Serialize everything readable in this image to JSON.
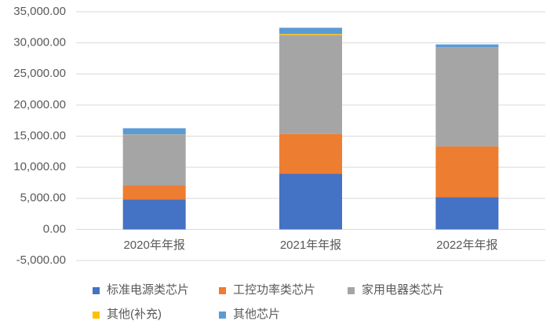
{
  "chart_data": {
    "type": "stacked_bar",
    "categories": [
      "2020年年报",
      "2021年年报",
      "2022年年报"
    ],
    "series": [
      {
        "name": "标准电源类芯片",
        "color": "#4472c4",
        "values": [
          4780,
          8940,
          5160
        ]
      },
      {
        "name": "工控功率类芯片",
        "color": "#ed7d31",
        "values": [
          2270,
          6420,
          8190
        ]
      },
      {
        "name": "家用电器类芯片",
        "color": "#a5a5a5",
        "values": [
          8190,
          15870,
          15870
        ]
      },
      {
        "name": "其他(补充)",
        "color": "#ffc000",
        "values": [
          30,
          200,
          30
        ]
      },
      {
        "name": "其他芯片",
        "color": "#5b9bd5",
        "values": [
          1000,
          1000,
          500
        ]
      }
    ],
    "ylim": [
      -5000,
      35000
    ],
    "yticks": [
      {
        "value": -5000,
        "label": "-5,000.00"
      },
      {
        "value": 0,
        "label": "0.00"
      },
      {
        "value": 5000,
        "label": "5,000.00"
      },
      {
        "value": 10000,
        "label": "10,000.00"
      },
      {
        "value": 15000,
        "label": "15,000.00"
      },
      {
        "value": 20000,
        "label": "20,000.00"
      },
      {
        "value": 25000,
        "label": "25,000.00"
      },
      {
        "value": 30000,
        "label": "30,000.00"
      },
      {
        "value": 35000,
        "label": "35,000.00"
      }
    ],
    "grid": true
  }
}
